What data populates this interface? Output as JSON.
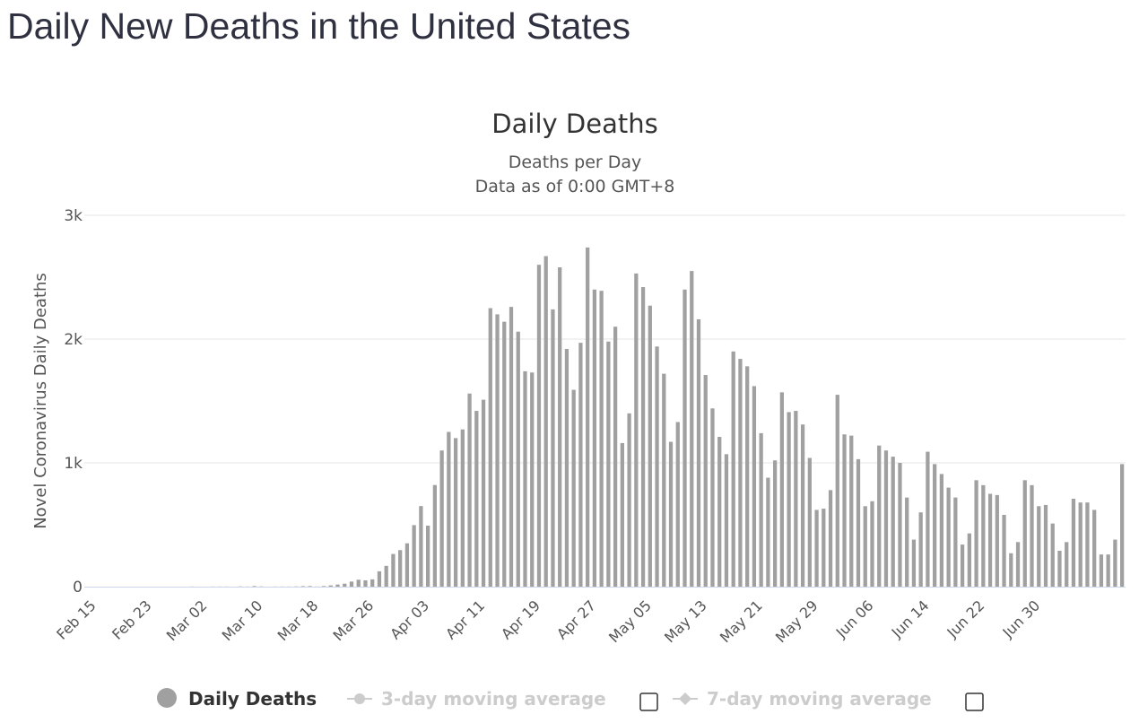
{
  "page": {
    "title": "Daily New Deaths in the United States"
  },
  "colors": {
    "bar": "#a0a0a0",
    "grid": "#e6e6e6",
    "axis_line": "#ccd6eb",
    "legend_inactive": "#cccccc"
  },
  "chart_data": {
    "type": "bar",
    "title": "Daily Deaths",
    "subtitle_lines": [
      "Deaths per Day",
      "Data as of 0:00 GMT+8"
    ],
    "ylabel": "Novel Coronavirus Daily Deaths",
    "ylim": [
      0,
      3000
    ],
    "y_ticks": [
      {
        "value": 0,
        "label": "0"
      },
      {
        "value": 1000,
        "label": "1k"
      },
      {
        "value": 2000,
        "label": "2k"
      },
      {
        "value": 3000,
        "label": "3k"
      }
    ],
    "x_tick_labels": [
      "Feb 15",
      "Feb 23",
      "Mar 02",
      "Mar 10",
      "Mar 18",
      "Mar 26",
      "Apr 03",
      "Apr 11",
      "Apr 19",
      "Apr 27",
      "May 05",
      "May 13",
      "May 21",
      "May 29",
      "Jun 06",
      "Jun 14",
      "Jun 22",
      "Jun 30"
    ],
    "x_tick_interval_days": 8,
    "start_label": "Feb 15",
    "grid": true,
    "legend_position": "bottom",
    "series": [
      {
        "name": "Daily Deaths",
        "values": [
          0,
          0,
          0,
          0,
          0,
          0,
          0,
          0,
          0,
          0,
          0,
          0,
          0,
          0,
          0,
          1,
          0,
          0,
          1,
          1,
          1,
          0,
          2,
          1,
          5,
          2,
          0,
          1,
          1,
          1,
          2,
          4,
          5,
          1,
          5,
          10,
          17,
          24,
          41,
          56,
          51,
          59,
          124,
          168,
          264,
          295,
          350,
          497,
          651,
          493,
          821,
          1100,
          1250,
          1200,
          1270,
          1560,
          1420,
          1510,
          2250,
          2200,
          2140,
          2260,
          2060,
          1740,
          1730,
          2600,
          2670,
          2240,
          2580,
          1920,
          1590,
          1970,
          2740,
          2400,
          2390,
          1980,
          2100,
          1160,
          1400,
          2530,
          2420,
          2270,
          1940,
          1720,
          1170,
          1330,
          2400,
          2550,
          2160,
          1710,
          1440,
          1210,
          1070,
          1900,
          1840,
          1780,
          1620,
          1240,
          880,
          1020,
          1570,
          1410,
          1420,
          1310,
          1040,
          620,
          630,
          780,
          1550,
          1230,
          1220,
          1030,
          650,
          690,
          1140,
          1100,
          1050,
          1000,
          720,
          380,
          600,
          1090,
          990,
          910,
          800,
          720,
          340,
          430,
          860,
          820,
          750,
          740,
          580,
          270,
          360,
          860,
          820,
          650,
          660,
          510,
          290,
          360,
          710,
          680,
          680,
          620,
          260,
          260,
          380,
          990
        ]
      },
      {
        "name": "3-day moving average",
        "visible": false
      },
      {
        "name": "7-day moving average",
        "visible": false
      }
    ]
  }
}
